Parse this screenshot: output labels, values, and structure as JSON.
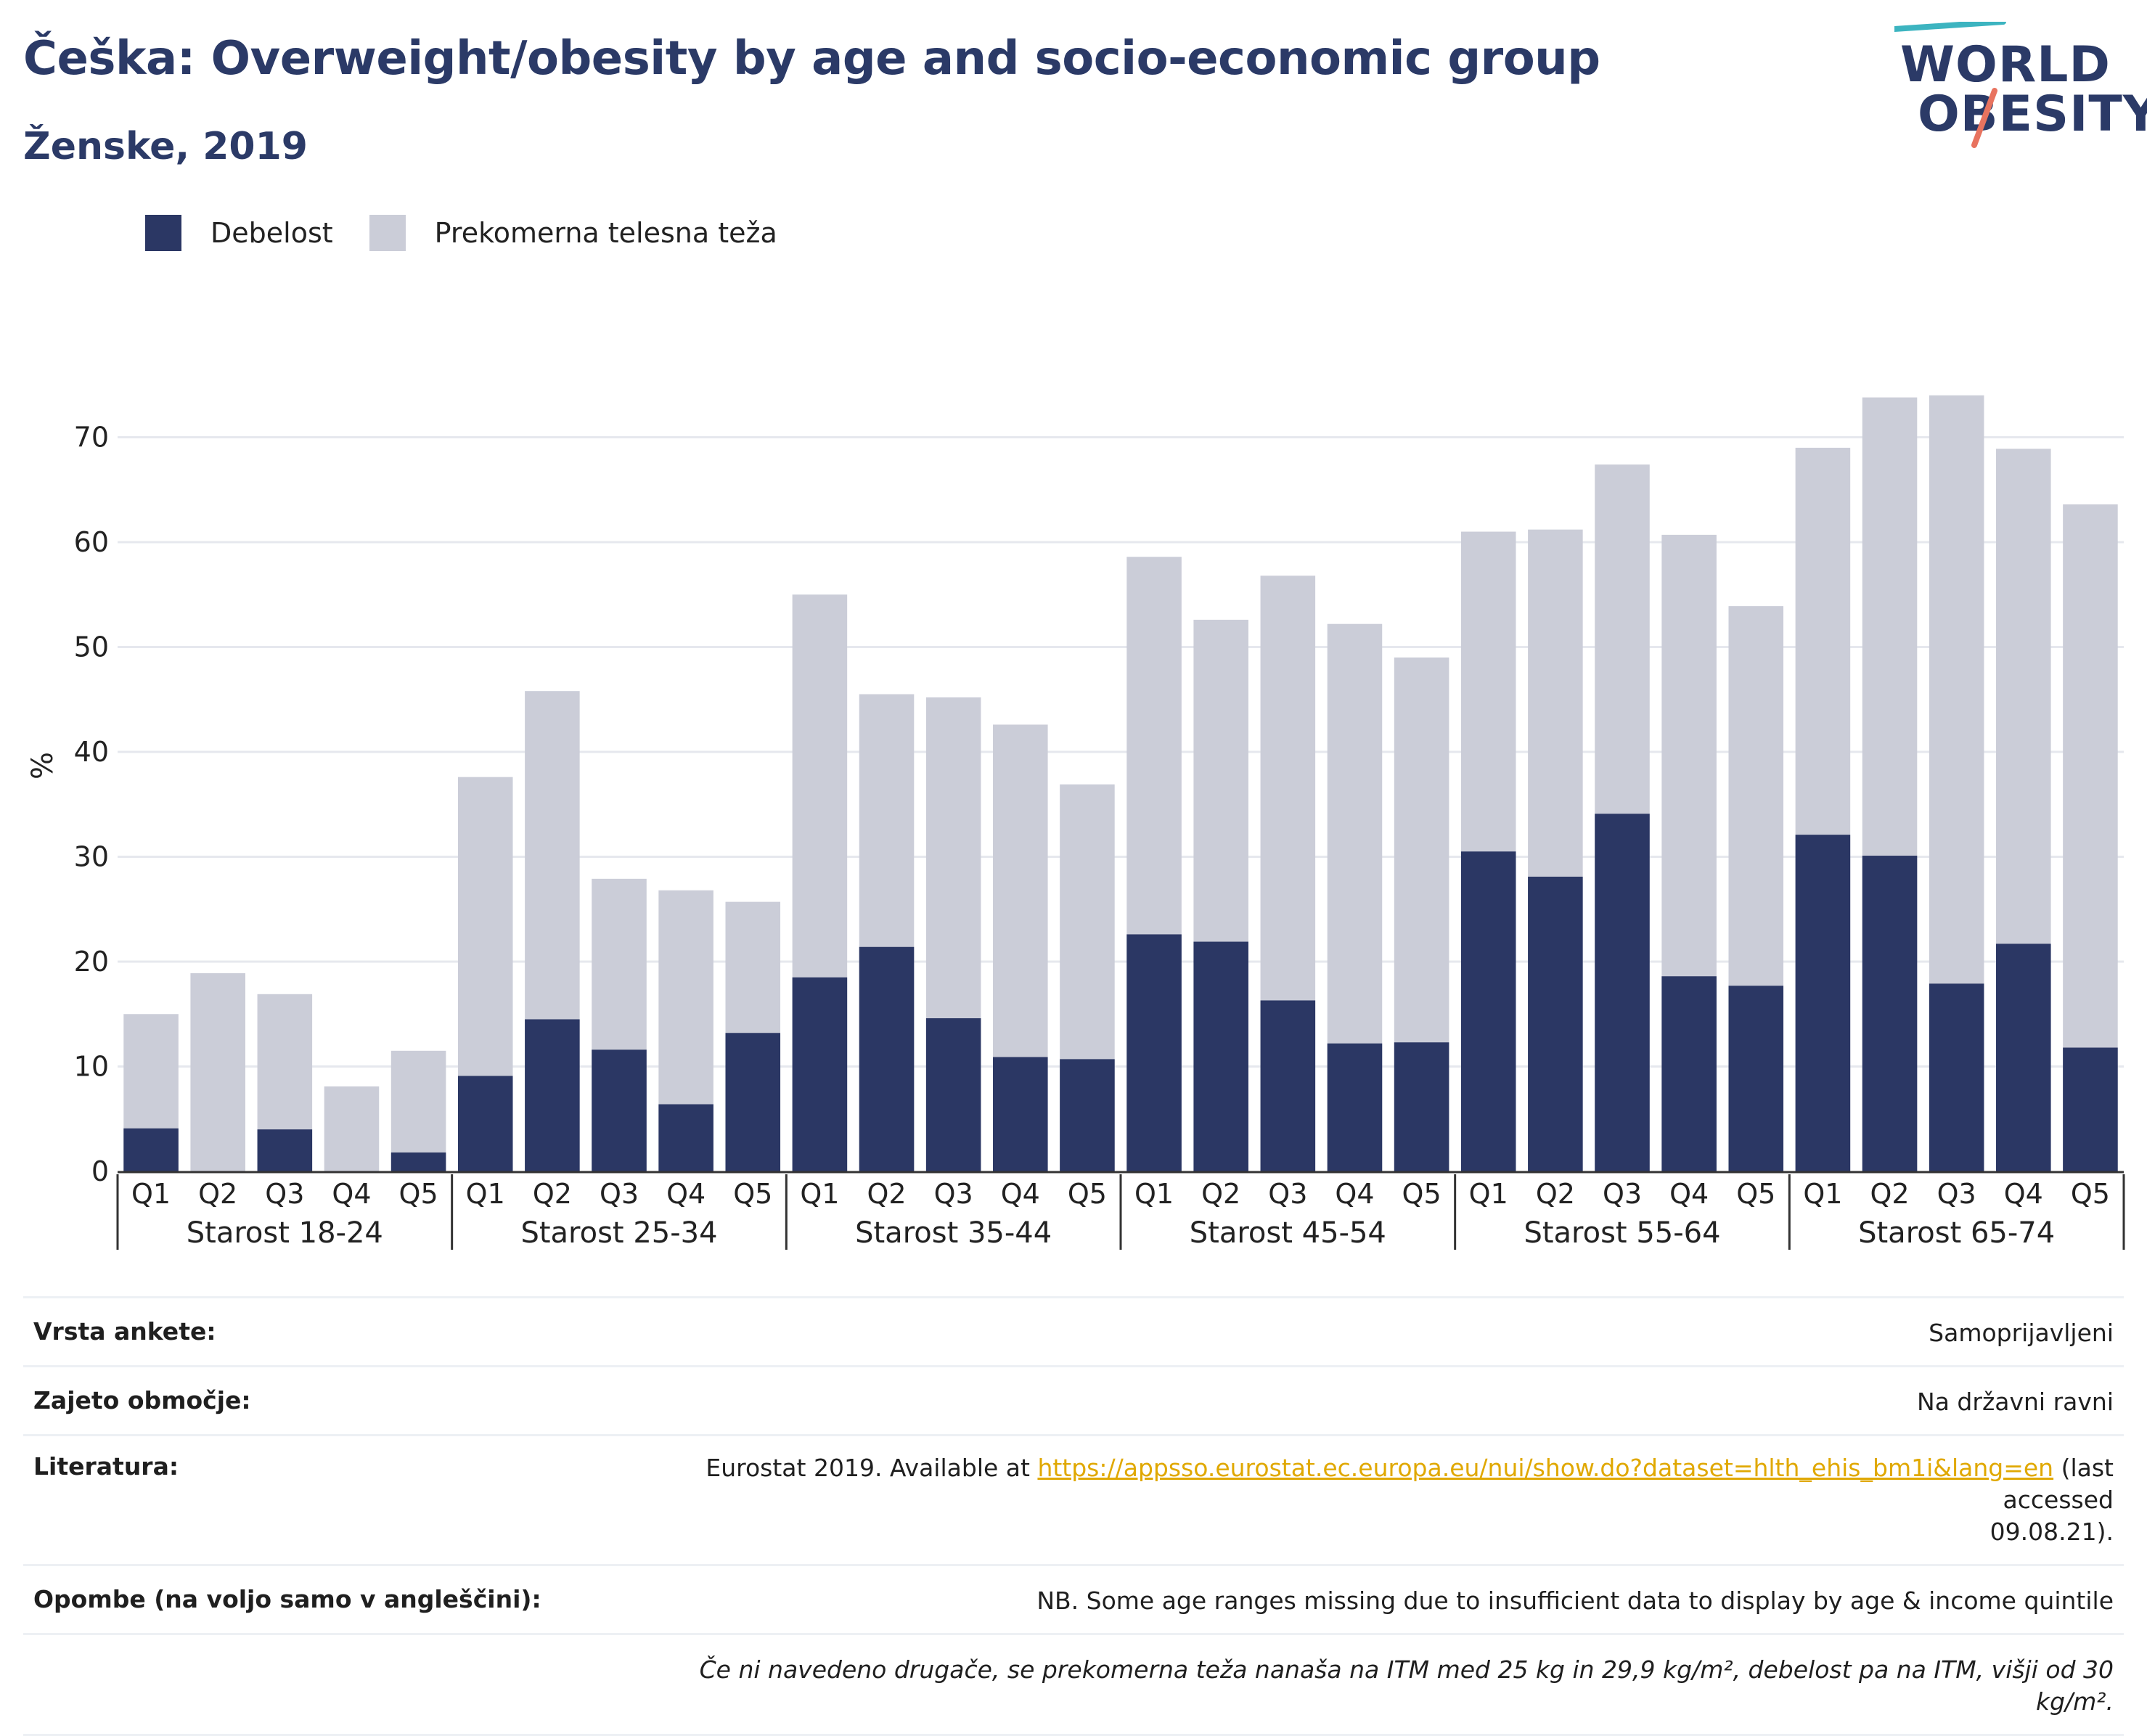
{
  "header": {
    "title": "Češka: Overweight/obesity by age and socio-economic group",
    "subtitle": "Ženske, 2019",
    "logo_line1": "WORLD",
    "logo_line2": "OBESITY"
  },
  "legend": {
    "items": [
      {
        "label": "Debelost",
        "color": "#2b3764"
      },
      {
        "label": "Prekomerna telesna teža",
        "color": "#cbcdd8"
      }
    ]
  },
  "chart_data": {
    "type": "bar",
    "stacked": false,
    "overlapping": true,
    "ylabel": "%",
    "ylim": [
      0,
      77
    ],
    "yticks": [
      0,
      10,
      20,
      30,
      40,
      50,
      60,
      70
    ],
    "grid": true,
    "legend_position": "top-left",
    "quintiles": [
      "Q1",
      "Q2",
      "Q3",
      "Q4",
      "Q5"
    ],
    "groups": [
      "Starost 18-24",
      "Starost 25-34",
      "Starost 35-44",
      "Starost 45-54",
      "Starost 55-64",
      "Starost 65-74"
    ],
    "series": [
      {
        "name": "Prekomerna telesna teža",
        "color": "#cbcdd8",
        "values": [
          15.0,
          18.9,
          16.9,
          8.1,
          11.5,
          37.6,
          45.8,
          27.9,
          26.8,
          25.7,
          55.0,
          45.5,
          45.2,
          42.6,
          36.9,
          58.6,
          52.6,
          56.8,
          52.2,
          49.0,
          61.0,
          61.2,
          67.4,
          60.7,
          53.9,
          69.0,
          73.8,
          74.0,
          68.9,
          63.6
        ]
      },
      {
        "name": "Debelost",
        "color": "#2b3764",
        "values": [
          4.1,
          0,
          4.0,
          0,
          1.8,
          9.1,
          14.5,
          11.6,
          6.4,
          13.2,
          18.5,
          21.4,
          14.6,
          10.9,
          10.7,
          22.6,
          21.9,
          16.3,
          12.2,
          12.3,
          30.5,
          28.1,
          34.1,
          18.6,
          17.7,
          32.1,
          30.1,
          17.9,
          21.7,
          11.8
        ]
      }
    ]
  },
  "meta": {
    "survey_type_label": "Vrsta ankete:",
    "survey_type_value": "Samoprijavljeni",
    "coverage_label": "Zajeto območje:",
    "coverage_value": "Na državni ravni",
    "literature_label": "Literatura:",
    "literature_prefix": "Eurostat 2019. Available at ",
    "literature_link": "https://appsso.eurostat.ec.europa.eu/nui/show.do?dataset=hlth_ehis_bm1i&lang=en",
    "literature_suffix_1": " (last accessed",
    "literature_suffix_2": "09.08.21).",
    "notes_label": "Opombe (na voljo samo v angleščini):",
    "notes_value": "NB. Some age ranges missing due to insufficient data to display by age & income quintile",
    "definition": "Če ni navedeno drugače, se prekomerna teža nanaša na ITM med 25 kg in 29,9 kg/m², debelost pa na ITM, višji od 30 kg/m²."
  }
}
